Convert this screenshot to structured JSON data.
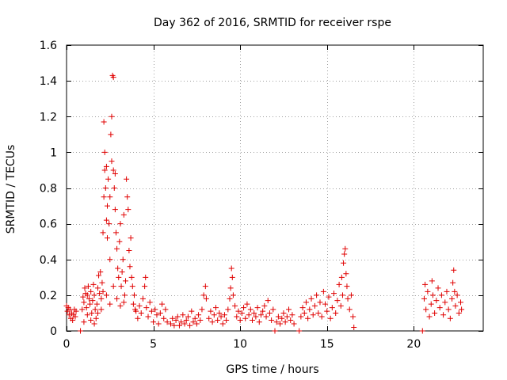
{
  "chart_data": {
    "type": "scatter",
    "title": "Day 362 of 2016, SRMTID for receiver rspe",
    "xlabel": "GPS time / hours",
    "ylabel": "SRMTID / TECUs",
    "xlim": [
      0,
      24
    ],
    "ylim": [
      0,
      1.6
    ],
    "xticks": [
      0,
      5,
      10,
      15,
      20
    ],
    "xtick_labels": [
      "0",
      "5",
      "10",
      "15",
      "20"
    ],
    "yticks": [
      0,
      0.2,
      0.4,
      0.6,
      0.8,
      1,
      1.2,
      1.4,
      1.6
    ],
    "ytick_labels": [
      "0",
      "0.2",
      "0.4",
      "0.6",
      "0.8",
      "1",
      "1.2",
      "1.4",
      "1.6"
    ],
    "grid": true,
    "marker": "+",
    "marker_color": "#e00000",
    "series": [
      {
        "name": "SRMTID",
        "points": [
          [
            0.0,
            0.14
          ],
          [
            0.05,
            0.11
          ],
          [
            0.1,
            0.13
          ],
          [
            0.15,
            0.09
          ],
          [
            0.2,
            0.12
          ],
          [
            0.25,
            0.07
          ],
          [
            0.3,
            0.1
          ],
          [
            0.35,
            0.06
          ],
          [
            0.4,
            0.09
          ],
          [
            0.45,
            0.12
          ],
          [
            0.5,
            0.08
          ],
          [
            0.55,
            0.11
          ],
          [
            0.8,
            0.0
          ],
          [
            0.9,
            0.12
          ],
          [
            0.95,
            0.19
          ],
          [
            1.0,
            0.16
          ],
          [
            1.05,
            0.24
          ],
          [
            1.1,
            0.21
          ],
          [
            1.15,
            0.13
          ],
          [
            1.2,
            0.2
          ],
          [
            1.25,
            0.25
          ],
          [
            1.3,
            0.18
          ],
          [
            1.35,
            0.15
          ],
          [
            1.4,
            0.22
          ],
          [
            1.45,
            0.1
          ],
          [
            1.5,
            0.17
          ],
          [
            1.55,
            0.26
          ],
          [
            1.6,
            0.2
          ],
          [
            1.65,
            0.12
          ],
          [
            1.7,
            0.07
          ],
          [
            1.75,
            0.15
          ],
          [
            1.8,
            0.24
          ],
          [
            1.85,
            0.31
          ],
          [
            1.9,
            0.21
          ],
          [
            1.95,
            0.33
          ],
          [
            2.0,
            0.18
          ],
          [
            2.05,
            0.27
          ],
          [
            2.1,
            0.22
          ],
          [
            1.0,
            0.05
          ],
          [
            1.2,
            0.09
          ],
          [
            1.4,
            0.06
          ],
          [
            1.6,
            0.04
          ],
          [
            1.8,
            0.1
          ],
          [
            2.0,
            0.12
          ],
          [
            2.1,
            0.55
          ],
          [
            2.15,
            0.75
          ],
          [
            2.15,
            1.17
          ],
          [
            2.2,
            0.9
          ],
          [
            2.2,
            1.0
          ],
          [
            2.25,
            0.8
          ],
          [
            2.3,
            0.62
          ],
          [
            2.3,
            0.92
          ],
          [
            2.35,
            0.52
          ],
          [
            2.35,
            0.7
          ],
          [
            2.4,
            0.85
          ],
          [
            2.45,
            0.6
          ],
          [
            2.5,
            0.4
          ],
          [
            2.5,
            0.75
          ],
          [
            2.55,
            1.1
          ],
          [
            2.6,
            0.95
          ],
          [
            2.6,
            1.2
          ],
          [
            2.65,
            1.43
          ],
          [
            2.7,
            0.9
          ],
          [
            2.7,
            1.42
          ],
          [
            2.75,
            0.8
          ],
          [
            2.8,
            0.68
          ],
          [
            2.8,
            0.88
          ],
          [
            2.85,
            0.55
          ],
          [
            2.9,
            0.46
          ],
          [
            2.95,
            0.35
          ],
          [
            3.0,
            0.3
          ],
          [
            3.05,
            0.5
          ],
          [
            3.1,
            0.6
          ],
          [
            3.15,
            0.25
          ],
          [
            3.2,
            0.33
          ],
          [
            3.25,
            0.4
          ],
          [
            3.3,
            0.65
          ],
          [
            3.35,
            0.2
          ],
          [
            3.4,
            0.28
          ],
          [
            3.45,
            0.85
          ],
          [
            3.5,
            0.75
          ],
          [
            3.55,
            0.68
          ],
          [
            3.6,
            0.45
          ],
          [
            3.65,
            0.36
          ],
          [
            3.7,
            0.52
          ],
          [
            3.75,
            0.3
          ],
          [
            3.8,
            0.25
          ],
          [
            3.85,
            0.15
          ],
          [
            3.9,
            0.2
          ],
          [
            3.95,
            0.12
          ],
          [
            2.3,
            0.2
          ],
          [
            2.5,
            0.15
          ],
          [
            2.7,
            0.25
          ],
          [
            2.9,
            0.18
          ],
          [
            3.1,
            0.14
          ],
          [
            3.3,
            0.16
          ],
          [
            4.0,
            0.11
          ],
          [
            4.1,
            0.07
          ],
          [
            4.2,
            0.14
          ],
          [
            4.3,
            0.1
          ],
          [
            4.4,
            0.18
          ],
          [
            4.5,
            0.25
          ],
          [
            4.55,
            0.3
          ],
          [
            4.6,
            0.13
          ],
          [
            4.7,
            0.08
          ],
          [
            4.8,
            0.16
          ],
          [
            4.9,
            0.11
          ],
          [
            5.0,
            0.05
          ],
          [
            5.1,
            0.12
          ],
          [
            5.2,
            0.09
          ],
          [
            5.3,
            0.04
          ],
          [
            5.4,
            0.1
          ],
          [
            5.5,
            0.15
          ],
          [
            5.6,
            0.07
          ],
          [
            5.7,
            0.12
          ],
          [
            5.8,
            0.05
          ],
          [
            6.0,
            0.04
          ],
          [
            6.1,
            0.07
          ],
          [
            6.2,
            0.03
          ],
          [
            6.3,
            0.06
          ],
          [
            6.4,
            0.08
          ],
          [
            6.5,
            0.03
          ],
          [
            6.6,
            0.05
          ],
          [
            6.7,
            0.09
          ],
          [
            6.8,
            0.04
          ],
          [
            6.9,
            0.06
          ],
          [
            7.0,
            0.08
          ],
          [
            7.1,
            0.03
          ],
          [
            7.2,
            0.11
          ],
          [
            7.3,
            0.05
          ],
          [
            7.4,
            0.07
          ],
          [
            7.5,
            0.04
          ],
          [
            7.6,
            0.09
          ],
          [
            7.7,
            0.06
          ],
          [
            7.8,
            0.12
          ],
          [
            7.9,
            0.2
          ],
          [
            8.0,
            0.25
          ],
          [
            8.05,
            0.18
          ],
          [
            8.2,
            0.07
          ],
          [
            8.3,
            0.11
          ],
          [
            8.4,
            0.05
          ],
          [
            8.5,
            0.09
          ],
          [
            8.6,
            0.13
          ],
          [
            8.7,
            0.06
          ],
          [
            8.8,
            0.1
          ],
          [
            8.9,
            0.08
          ],
          [
            9.0,
            0.04
          ],
          [
            9.1,
            0.09
          ],
          [
            9.2,
            0.06
          ],
          [
            9.3,
            0.12
          ],
          [
            9.4,
            0.18
          ],
          [
            9.45,
            0.24
          ],
          [
            9.5,
            0.35
          ],
          [
            9.55,
            0.3
          ],
          [
            9.6,
            0.2
          ],
          [
            9.7,
            0.14
          ],
          [
            9.8,
            0.08
          ],
          [
            9.9,
            0.11
          ],
          [
            10.0,
            0.06
          ],
          [
            10.1,
            0.1
          ],
          [
            10.2,
            0.13
          ],
          [
            10.3,
            0.07
          ],
          [
            10.4,
            0.15
          ],
          [
            10.5,
            0.09
          ],
          [
            10.6,
            0.12
          ],
          [
            10.7,
            0.06
          ],
          [
            10.8,
            0.1
          ],
          [
            10.9,
            0.08
          ],
          [
            11.0,
            0.13
          ],
          [
            11.1,
            0.05
          ],
          [
            11.2,
            0.09
          ],
          [
            11.3,
            0.11
          ],
          [
            11.4,
            0.14
          ],
          [
            11.5,
            0.08
          ],
          [
            11.6,
            0.17
          ],
          [
            11.7,
            0.1
          ],
          [
            11.8,
            0.06
          ],
          [
            11.9,
            0.12
          ],
          [
            12.0,
            0.0
          ],
          [
            12.1,
            0.05
          ],
          [
            12.2,
            0.08
          ],
          [
            12.3,
            0.04
          ],
          [
            12.4,
            0.07
          ],
          [
            12.5,
            0.1
          ],
          [
            12.6,
            0.05
          ],
          [
            12.7,
            0.08
          ],
          [
            12.8,
            0.12
          ],
          [
            12.9,
            0.06
          ],
          [
            13.0,
            0.09
          ],
          [
            13.1,
            0.04
          ],
          [
            13.4,
            0.0
          ],
          [
            13.5,
            0.08
          ],
          [
            13.6,
            0.13
          ],
          [
            13.7,
            0.1
          ],
          [
            13.8,
            0.16
          ],
          [
            13.9,
            0.07
          ],
          [
            14.0,
            0.12
          ],
          [
            14.1,
            0.18
          ],
          [
            14.2,
            0.09
          ],
          [
            14.3,
            0.14
          ],
          [
            14.4,
            0.2
          ],
          [
            14.5,
            0.1
          ],
          [
            14.6,
            0.16
          ],
          [
            14.7,
            0.08
          ],
          [
            14.8,
            0.22
          ],
          [
            14.9,
            0.15
          ],
          [
            15.0,
            0.11
          ],
          [
            15.1,
            0.19
          ],
          [
            15.2,
            0.07
          ],
          [
            15.3,
            0.13
          ],
          [
            15.4,
            0.21
          ],
          [
            15.5,
            0.1
          ],
          [
            15.6,
            0.17
          ],
          [
            15.7,
            0.26
          ],
          [
            15.8,
            0.14
          ],
          [
            15.85,
            0.3
          ],
          [
            15.9,
            0.2
          ],
          [
            15.95,
            0.38
          ],
          [
            16.0,
            0.43
          ],
          [
            16.05,
            0.46
          ],
          [
            16.1,
            0.32
          ],
          [
            16.15,
            0.25
          ],
          [
            16.2,
            0.18
          ],
          [
            16.3,
            0.12
          ],
          [
            16.4,
            0.2
          ],
          [
            16.5,
            0.08
          ],
          [
            16.55,
            0.02
          ],
          [
            20.5,
            0.0
          ],
          [
            20.6,
            0.18
          ],
          [
            20.65,
            0.26
          ],
          [
            20.7,
            0.12
          ],
          [
            20.8,
            0.22
          ],
          [
            20.9,
            0.08
          ],
          [
            21.0,
            0.15
          ],
          [
            21.05,
            0.28
          ],
          [
            21.1,
            0.2
          ],
          [
            21.2,
            0.1
          ],
          [
            21.3,
            0.17
          ],
          [
            21.4,
            0.24
          ],
          [
            21.5,
            0.13
          ],
          [
            21.6,
            0.2
          ],
          [
            21.7,
            0.09
          ],
          [
            21.8,
            0.16
          ],
          [
            21.9,
            0.22
          ],
          [
            22.0,
            0.12
          ],
          [
            22.1,
            0.07
          ],
          [
            22.2,
            0.18
          ],
          [
            22.25,
            0.27
          ],
          [
            22.3,
            0.34
          ],
          [
            22.35,
            0.22
          ],
          [
            22.4,
            0.14
          ],
          [
            22.5,
            0.2
          ],
          [
            22.6,
            0.1
          ],
          [
            22.7,
            0.16
          ],
          [
            22.75,
            0.12
          ]
        ]
      }
    ]
  }
}
